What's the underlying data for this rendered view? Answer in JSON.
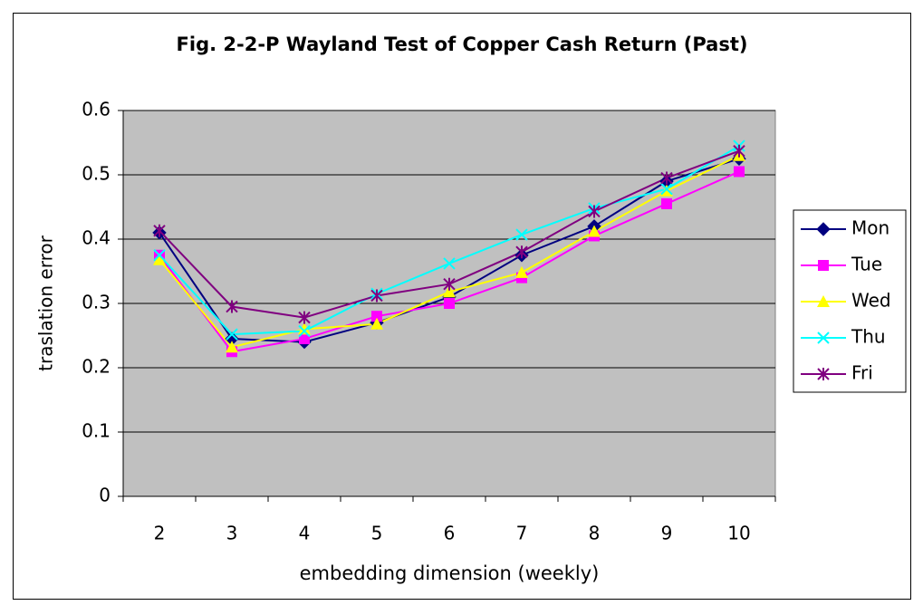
{
  "chart_data": {
    "type": "line",
    "title": "Fig. 2-2-P  Wayland Test of Copper Cash Return (Past)",
    "xlabel": "embedding dimension (weekly)",
    "ylabel": "traslation error",
    "categories": [
      "2",
      "3",
      "4",
      "5",
      "6",
      "7",
      "8",
      "9",
      "10"
    ],
    "ylim": [
      0,
      0.6
    ],
    "yticks": [
      0,
      0.1,
      0.2,
      0.3,
      0.4,
      0.5,
      0.6
    ],
    "grid": true,
    "legend": "right",
    "series": [
      {
        "name": "Mon",
        "color": "#000080",
        "marker": "diamond",
        "values": [
          0.41,
          0.245,
          0.24,
          0.27,
          0.31,
          0.375,
          0.42,
          0.49,
          0.525
        ]
      },
      {
        "name": "Tue",
        "color": "#ff00ff",
        "marker": "square",
        "values": [
          0.375,
          0.225,
          0.245,
          0.28,
          0.3,
          0.34,
          0.405,
          0.455,
          0.505
        ]
      },
      {
        "name": "Wed",
        "color": "#ffff00",
        "marker": "triangle",
        "values": [
          0.368,
          0.232,
          0.26,
          0.268,
          0.318,
          0.348,
          0.412,
          0.475,
          0.53
        ]
      },
      {
        "name": "Thu",
        "color": "#00ffff",
        "marker": "x",
        "values": [
          0.375,
          0.252,
          0.257,
          0.315,
          0.362,
          0.407,
          0.448,
          0.478,
          0.545
        ]
      },
      {
        "name": "Fri",
        "color": "#800080",
        "marker": "star",
        "values": [
          0.413,
          0.295,
          0.278,
          0.312,
          0.33,
          0.38,
          0.443,
          0.495,
          0.537
        ]
      }
    ]
  }
}
